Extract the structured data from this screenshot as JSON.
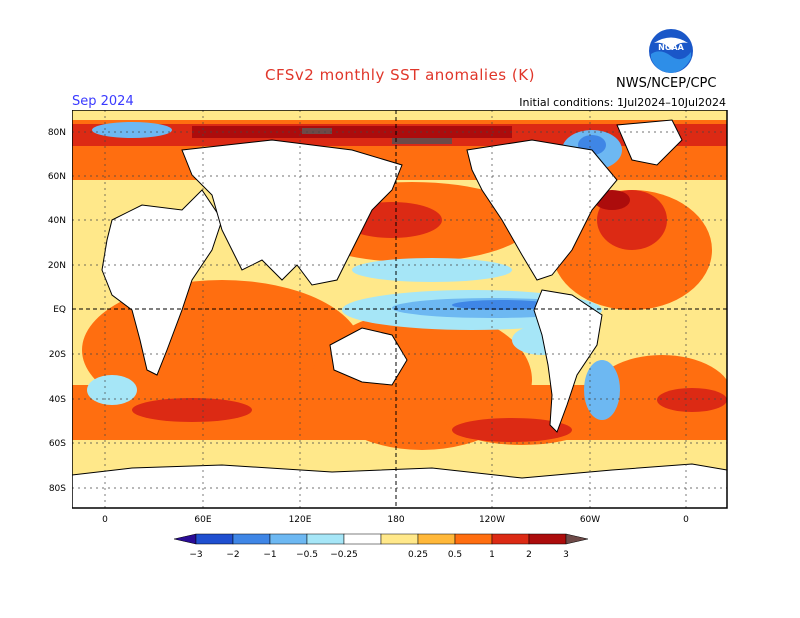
{
  "header": {
    "title": "CFSv2 monthly SST anomalies (K)",
    "month": "Sep 2024",
    "initial_conditions": "Initial conditions: 1Jul2024–10Jul2024",
    "agency": "NWS/NCEP/CPC",
    "logo_text": "NOAA"
  },
  "lat_labels": [
    "80N",
    "60N",
    "40N",
    "20N",
    "EQ",
    "20S",
    "40S",
    "60S",
    "80S"
  ],
  "lon_labels": [
    "0",
    "60E",
    "120E",
    "180",
    "120W",
    "60W",
    "0"
  ],
  "colorbar": {
    "colors": [
      "#2a0c96",
      "#1f4fd0",
      "#3f86e6",
      "#6db8f2",
      "#a6e6f7",
      "#ffffff",
      "#ffe88a",
      "#ffb83a",
      "#ff6e10",
      "#dc2a14",
      "#ac0c0c",
      "#6e4a48"
    ],
    "tick_labels": [
      "−3",
      "−2",
      "−1",
      "−0.5",
      "−0.25",
      "0.25",
      "0.5",
      "1",
      "2",
      "3"
    ]
  }
}
